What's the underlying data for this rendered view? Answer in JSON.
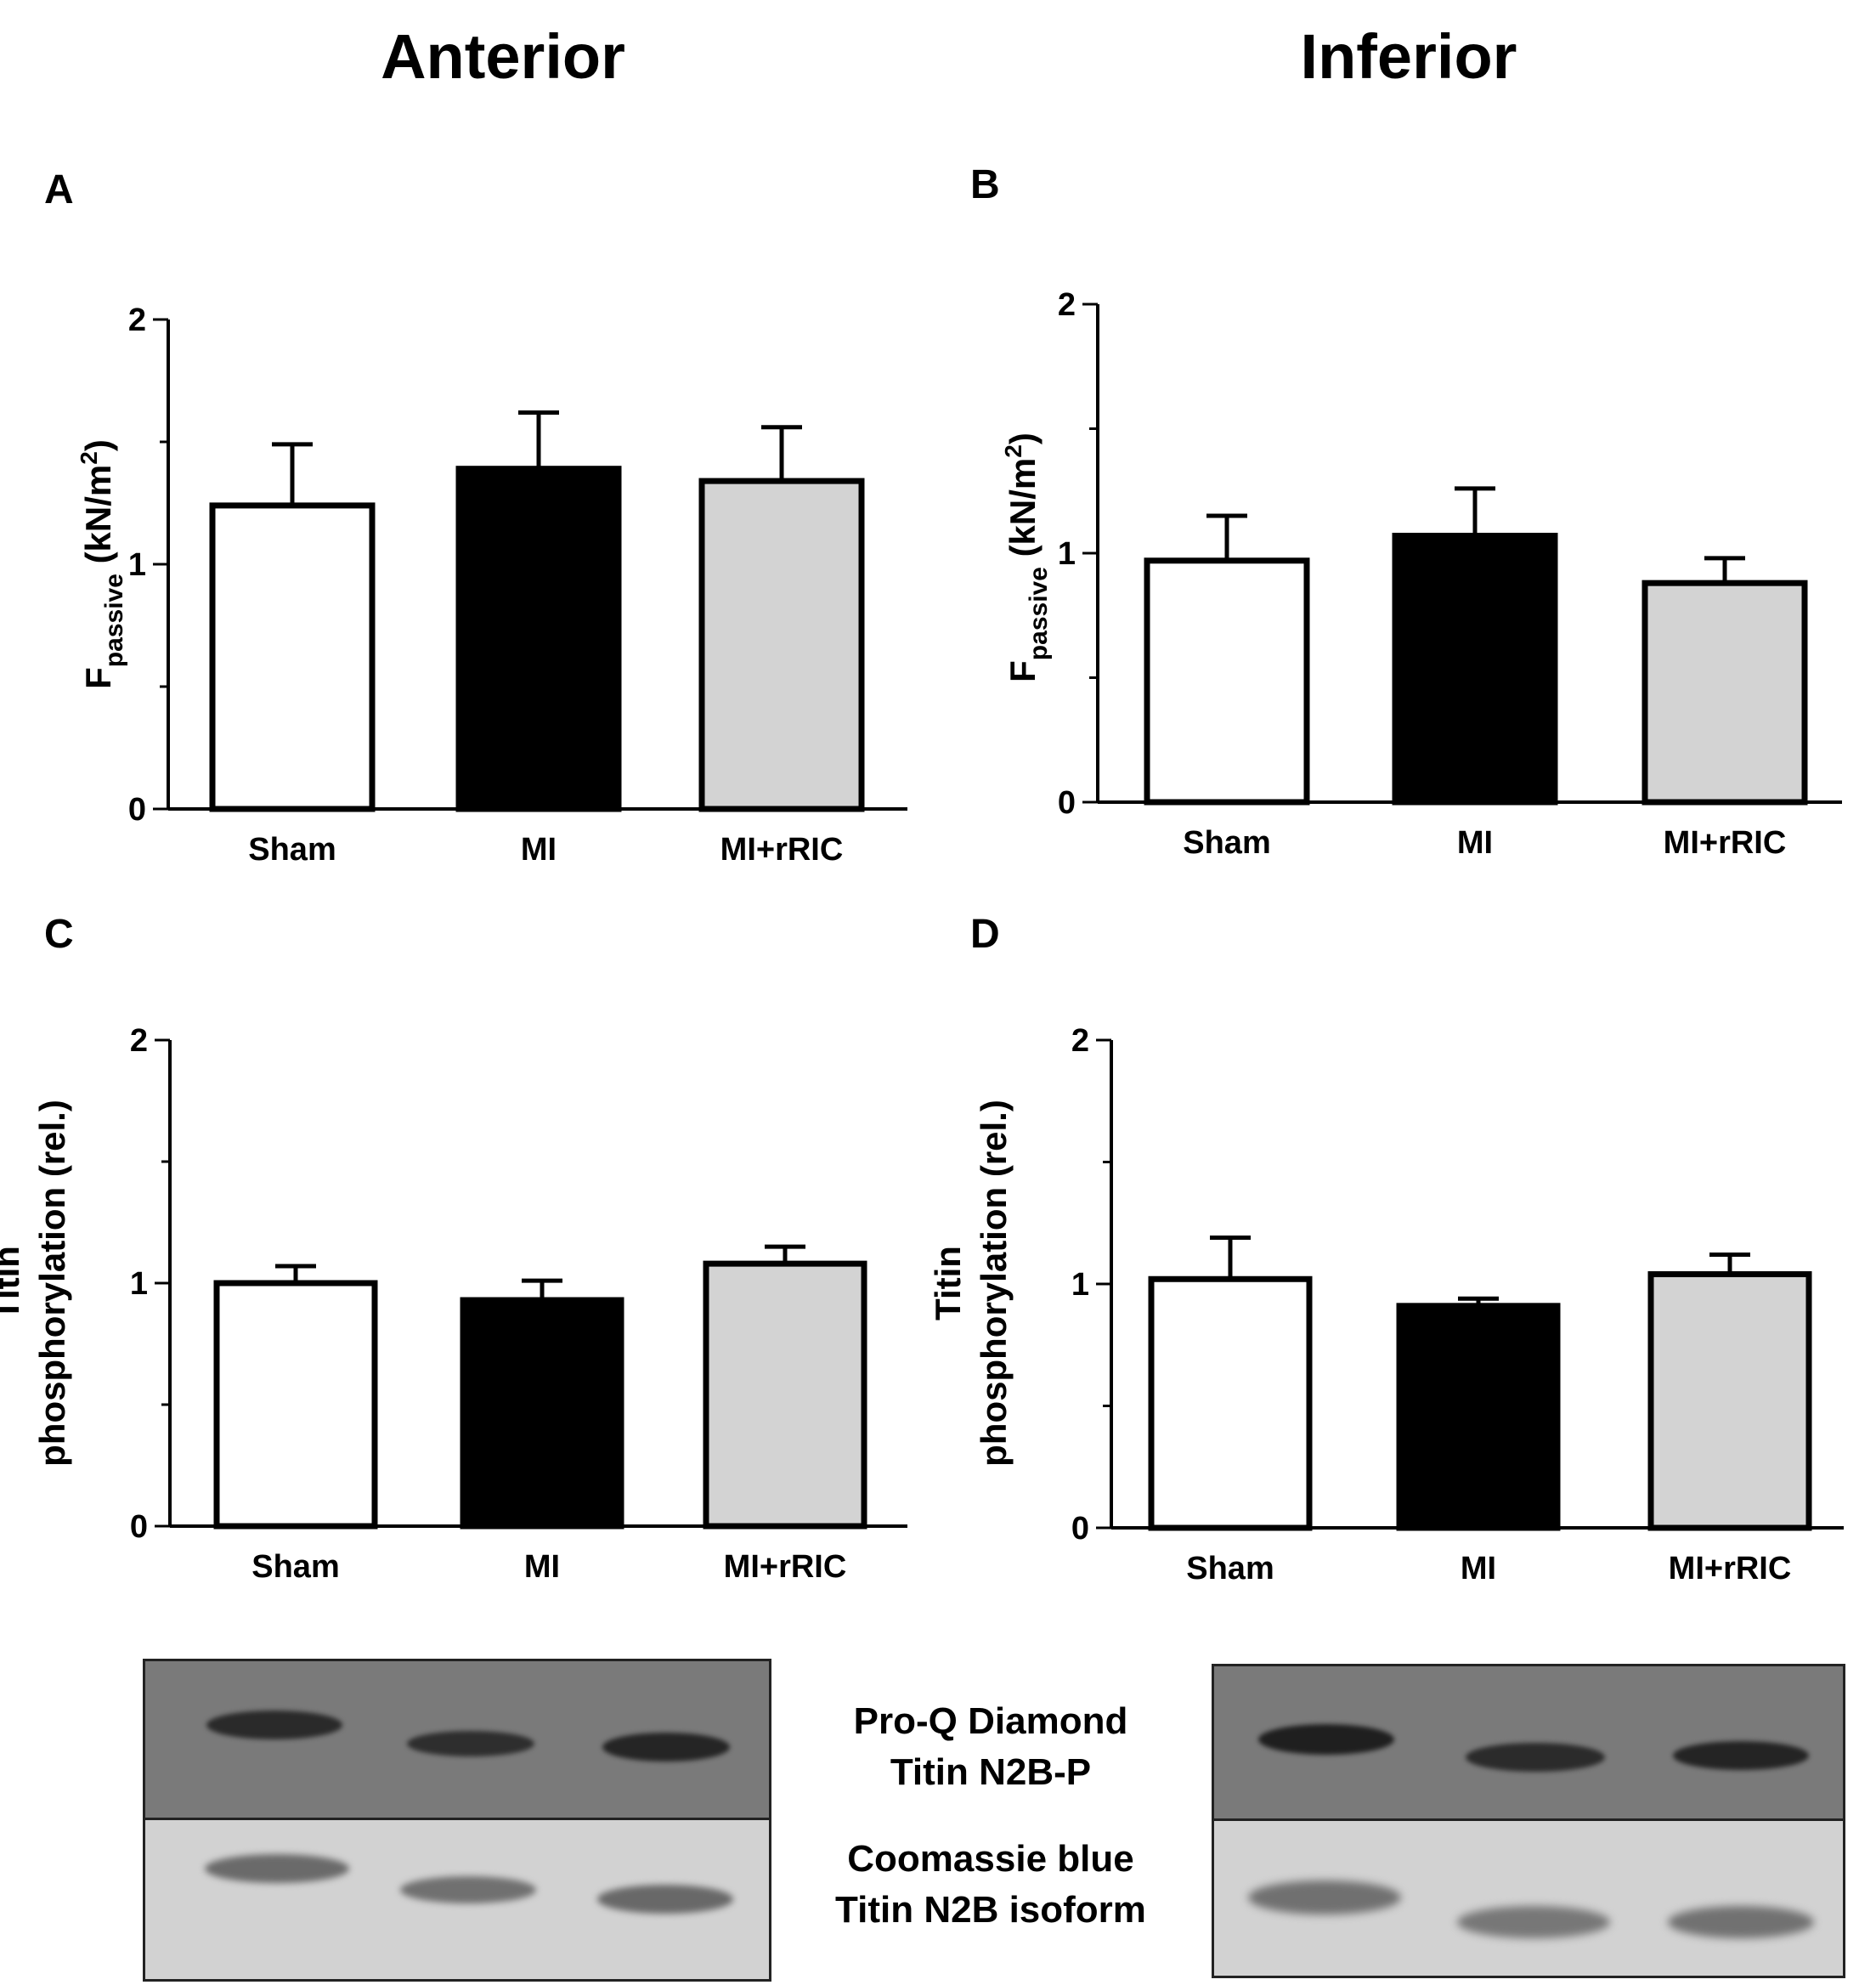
{
  "columns": {
    "left": "Anterior",
    "right": "Inferior"
  },
  "panels": [
    "A",
    "B",
    "C",
    "D"
  ],
  "colors": {
    "sham": "#ffffff",
    "mi": "#000000",
    "mirric": "#d3d3d3",
    "axis": "#000000"
  },
  "chart_data": [
    {
      "id": "A",
      "type": "bar",
      "title": "Anterior",
      "categories": [
        "Sham",
        "MI",
        "MI+rRIC"
      ],
      "values": [
        1.24,
        1.39,
        1.34
      ],
      "errors": [
        0.25,
        0.23,
        0.22
      ],
      "ylabel_main": "F",
      "ylabel_sub": "passive",
      "ylabel_unit": " (kN/m",
      "ylabel_sup": "2",
      "ylabel_close": ")",
      "ylim": [
        0,
        2
      ],
      "yticks": [
        "0",
        "1",
        "2"
      ]
    },
    {
      "id": "B",
      "type": "bar",
      "title": "Inferior",
      "categories": [
        "Sham",
        "MI",
        "MI+rRIC"
      ],
      "values": [
        0.97,
        1.07,
        0.88
      ],
      "errors": [
        0.18,
        0.19,
        0.1
      ],
      "ylabel_main": "F",
      "ylabel_sub": "passive",
      "ylabel_unit": " (kN/m",
      "ylabel_sup": "2",
      "ylabel_close": ")",
      "ylim": [
        0,
        2
      ],
      "yticks": [
        "0",
        "1",
        "2"
      ]
    },
    {
      "id": "C",
      "type": "bar",
      "title": "Anterior",
      "categories": [
        "Sham",
        "MI",
        "MI+rRIC"
      ],
      "values": [
        1.0,
        0.93,
        1.08
      ],
      "errors": [
        0.07,
        0.08,
        0.07
      ],
      "ylabel_line1": "Titin",
      "ylabel_line2": "phosphorylation (rel.)",
      "ylim": [
        0,
        2
      ],
      "yticks": [
        "0",
        "1",
        "2"
      ]
    },
    {
      "id": "D",
      "type": "bar",
      "title": "Inferior",
      "categories": [
        "Sham",
        "MI",
        "MI+rRIC"
      ],
      "values": [
        1.02,
        0.91,
        1.04
      ],
      "errors": [
        0.17,
        0.03,
        0.08
      ],
      "ylabel_line1": "Titin",
      "ylabel_line2": "phosphorylation (rel.)",
      "ylim": [
        0,
        2
      ],
      "yticks": [
        "0",
        "1",
        "2"
      ]
    }
  ],
  "blots": {
    "top_label_line1": "Pro-Q Diamond",
    "top_label_line2": "Titin N2B-P",
    "bottom_label_line1": "Coomassie blue",
    "bottom_label_line2": "Titin N2B isoform"
  }
}
